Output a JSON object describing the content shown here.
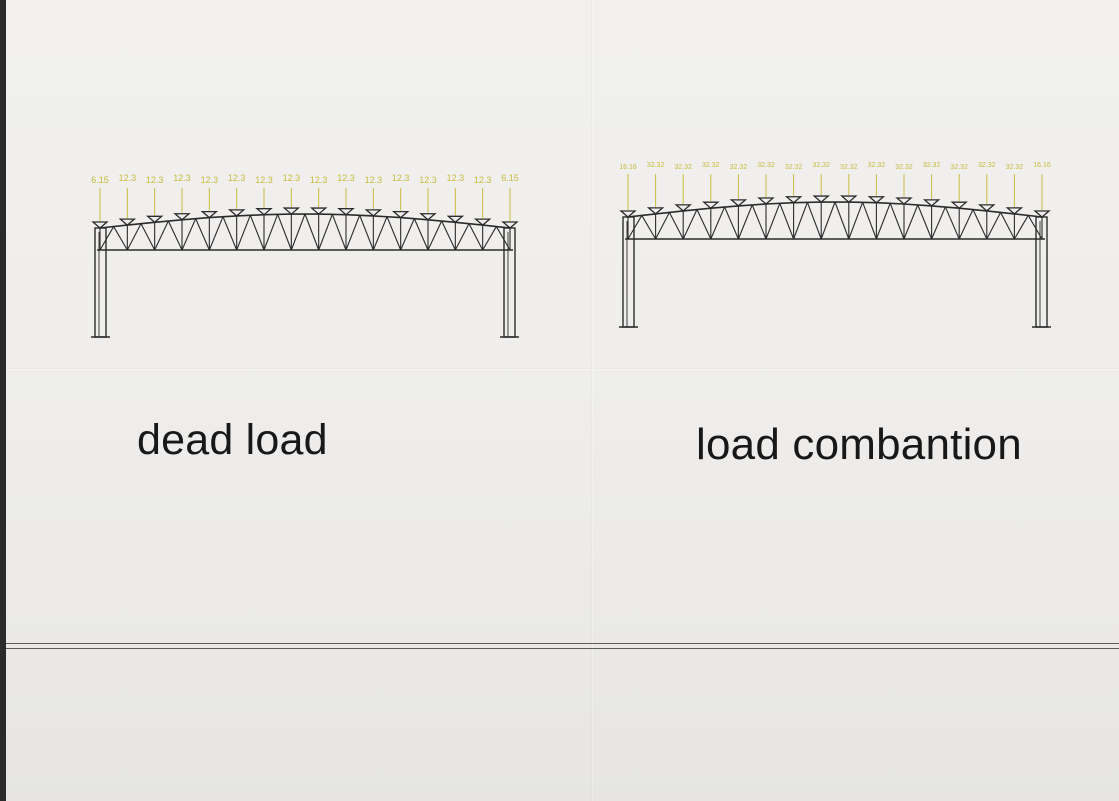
{
  "figures": [
    {
      "id": "left",
      "caption": "dead load",
      "load_labels": [
        "6.15",
        "12.3",
        "12.3",
        "12.3",
        "12.3",
        "12.3",
        "12.3",
        "12.3",
        "12.3",
        "12.3",
        "12.3",
        "12.3",
        "12.3",
        "12.3",
        "12.3",
        "6.15"
      ],
      "load_color": "#c8bb3e"
    },
    {
      "id": "right",
      "caption": "load combantion",
      "load_labels": [
        "16.16",
        "32.32",
        "32.32",
        "32.32",
        "32.32",
        "32.32",
        "32.32",
        "32.32",
        "32.32",
        "32.32",
        "32.32",
        "32.32",
        "32.32",
        "32.32",
        "32.32",
        "16.16"
      ],
      "load_color": "#c8bb3e"
    }
  ]
}
